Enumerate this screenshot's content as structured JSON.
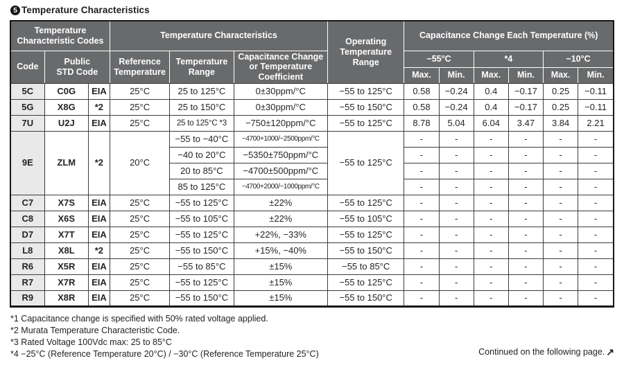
{
  "page": {
    "section_number": "5",
    "title": "Temperature Characteristics"
  },
  "table": {
    "header_rows": [
      {
        "cells": [
          {
            "t": "Temperature Characteristic Codes",
            "cs": 3
          },
          {
            "t": "Temperature Characteristics",
            "cs": 3
          },
          {
            "t": "Operating Temperature Range",
            "rs": 3,
            "cls": "bb",
            "n": "header-operating-temperature-range"
          },
          {
            "t": "Capacitance Change Each Temperature (%)",
            "cs": 6
          }
        ]
      },
      {
        "cells": [
          {
            "t": "Code",
            "rs": 2,
            "cls": "bb",
            "n": "header-code"
          },
          {
            "t": "Public\nSTD Code",
            "cs": 2,
            "rs": 2,
            "cls": "bb",
            "n": "header-public-std-code"
          },
          {
            "t": "Reference\nTemperature",
            "rs": 2,
            "cls": "bb",
            "n": "header-reference-temperature"
          },
          {
            "t": "Temperature\nRange",
            "rs": 2,
            "cls": "bb",
            "n": "header-temperature-range"
          },
          {
            "t": "Capacitance Change\nor Temperature\nCoefficient",
            "rs": 2,
            "cls": "bb",
            "n": "header-capacitance-change"
          },
          {
            "t": "−55°C",
            "cs": 2,
            "n": "header-minus-55c"
          },
          {
            "t": "*4",
            "cs": 2,
            "n": "header-star4"
          },
          {
            "t": "−10°C",
            "cs": 2,
            "n": "header-minus-10c"
          }
        ]
      },
      {
        "cells": [
          {
            "t": "Max.",
            "cls": "bb"
          },
          {
            "t": "Min.",
            "cls": "bb"
          },
          {
            "t": "Max.",
            "cls": "bb"
          },
          {
            "t": "Min.",
            "cls": "bb"
          },
          {
            "t": "Max.",
            "cls": "bb"
          },
          {
            "t": "Min.",
            "cls": "bb"
          }
        ]
      }
    ],
    "body_rows": [
      {
        "cells": [
          {
            "t": "5C",
            "cls": "code",
            "n": "code-cell"
          },
          {
            "t": "C0G",
            "cls": "b"
          },
          {
            "t": "EIA",
            "cls": "b"
          },
          {
            "t": "25°C"
          },
          {
            "t": "25 to 125°C"
          },
          {
            "t": "0±30ppm/°C"
          },
          {
            "t": "−55 to 125°C"
          },
          {
            "t": "0.58"
          },
          {
            "t": "−0.24"
          },
          {
            "t": "0.4"
          },
          {
            "t": "−0.17"
          },
          {
            "t": "0.25"
          },
          {
            "t": "−0.11"
          }
        ]
      },
      {
        "cells": [
          {
            "t": "5G",
            "cls": "code",
            "n": "code-cell"
          },
          {
            "t": "X8G",
            "cls": "b"
          },
          {
            "t": "*2",
            "cls": "b"
          },
          {
            "t": "25°C"
          },
          {
            "t": "25 to 150°C"
          },
          {
            "t": "0±30ppm/°C"
          },
          {
            "t": "−55 to 150°C"
          },
          {
            "t": "0.58"
          },
          {
            "t": "−0.24"
          },
          {
            "t": "0.4"
          },
          {
            "t": "−0.17"
          },
          {
            "t": "0.25"
          },
          {
            "t": "−0.11"
          }
        ]
      },
      {
        "cells": [
          {
            "t": "7U",
            "cls": "code",
            "n": "code-cell"
          },
          {
            "t": "U2J",
            "cls": "b"
          },
          {
            "t": "EIA",
            "cls": "b"
          },
          {
            "t": "25°C"
          },
          {
            "t": "25 to 125°C *3",
            "cls": "tight"
          },
          {
            "t": "−750±120ppm/°C"
          },
          {
            "t": "−55 to 125°C"
          },
          {
            "t": "8.78"
          },
          {
            "t": "5.04"
          },
          {
            "t": "6.04"
          },
          {
            "t": "3.47"
          },
          {
            "t": "3.84"
          },
          {
            "t": "2.21"
          }
        ]
      },
      {
        "cells": [
          {
            "t": "9E",
            "cls": "code",
            "rs": 4,
            "n": "code-cell"
          },
          {
            "t": "ZLM",
            "cls": "b",
            "rs": 4
          },
          {
            "t": "*2",
            "cls": "b",
            "rs": 4
          },
          {
            "t": "20°C",
            "rs": 4
          },
          {
            "t": "−55 to −40°C"
          },
          {
            "t": "−4700+1000/−2500ppm/°C",
            "cls": "small"
          },
          {
            "t": "−55 to 125°C",
            "rs": 4
          },
          {
            "t": "-"
          },
          {
            "t": "-"
          },
          {
            "t": "-"
          },
          {
            "t": "-"
          },
          {
            "t": "-"
          },
          {
            "t": "-"
          }
        ]
      },
      {
        "cells": [
          {
            "t": "−40 to 20°C"
          },
          {
            "t": "−5350±750ppm/°C"
          },
          {
            "t": "-"
          },
          {
            "t": "-"
          },
          {
            "t": "-"
          },
          {
            "t": "-"
          },
          {
            "t": "-"
          },
          {
            "t": "-"
          }
        ]
      },
      {
        "cells": [
          {
            "t": "20 to 85°C"
          },
          {
            "t": "−4700±500ppm/°C"
          },
          {
            "t": "-"
          },
          {
            "t": "-"
          },
          {
            "t": "-"
          },
          {
            "t": "-"
          },
          {
            "t": "-"
          },
          {
            "t": "-"
          }
        ]
      },
      {
        "cells": [
          {
            "t": "85 to 125°C"
          },
          {
            "t": "−4700+2000/−1000ppm/°C",
            "cls": "small"
          },
          {
            "t": "-"
          },
          {
            "t": "-"
          },
          {
            "t": "-"
          },
          {
            "t": "-"
          },
          {
            "t": "-"
          },
          {
            "t": "-"
          }
        ]
      },
      {
        "cells": [
          {
            "t": "C7",
            "cls": "code",
            "n": "code-cell"
          },
          {
            "t": "X7S",
            "cls": "b"
          },
          {
            "t": "EIA",
            "cls": "b"
          },
          {
            "t": "25°C"
          },
          {
            "t": "−55 to 125°C"
          },
          {
            "t": "±22%"
          },
          {
            "t": "−55 to 125°C"
          },
          {
            "t": "-"
          },
          {
            "t": "-"
          },
          {
            "t": "-"
          },
          {
            "t": "-"
          },
          {
            "t": "-"
          },
          {
            "t": "-"
          }
        ]
      },
      {
        "cells": [
          {
            "t": "C8",
            "cls": "code",
            "n": "code-cell"
          },
          {
            "t": "X6S",
            "cls": "b"
          },
          {
            "t": "EIA",
            "cls": "b"
          },
          {
            "t": "25°C"
          },
          {
            "t": "−55 to 105°C"
          },
          {
            "t": "±22%"
          },
          {
            "t": "−55 to 105°C"
          },
          {
            "t": "-"
          },
          {
            "t": "-"
          },
          {
            "t": "-"
          },
          {
            "t": "-"
          },
          {
            "t": "-"
          },
          {
            "t": "-"
          }
        ]
      },
      {
        "cells": [
          {
            "t": "D7",
            "cls": "code",
            "n": "code-cell"
          },
          {
            "t": "X7T",
            "cls": "b"
          },
          {
            "t": "EIA",
            "cls": "b"
          },
          {
            "t": "25°C"
          },
          {
            "t": "−55 to 125°C"
          },
          {
            "t": "+22%, −33%"
          },
          {
            "t": "−55 to 125°C"
          },
          {
            "t": "-"
          },
          {
            "t": "-"
          },
          {
            "t": "-"
          },
          {
            "t": "-"
          },
          {
            "t": "-"
          },
          {
            "t": "-"
          }
        ]
      },
      {
        "cells": [
          {
            "t": "L8",
            "cls": "code",
            "n": "code-cell"
          },
          {
            "t": "X8L",
            "cls": "b"
          },
          {
            "t": "*2",
            "cls": "b"
          },
          {
            "t": "25°C"
          },
          {
            "t": "−55 to 150°C"
          },
          {
            "t": "+15%, −40%"
          },
          {
            "t": "−55 to 150°C"
          },
          {
            "t": "-"
          },
          {
            "t": "-"
          },
          {
            "t": "-"
          },
          {
            "t": "-"
          },
          {
            "t": "-"
          },
          {
            "t": "-"
          }
        ]
      },
      {
        "cells": [
          {
            "t": "R6",
            "cls": "code",
            "n": "code-cell"
          },
          {
            "t": "X5R",
            "cls": "b"
          },
          {
            "t": "EIA",
            "cls": "b"
          },
          {
            "t": "25°C"
          },
          {
            "t": "−55 to 85°C"
          },
          {
            "t": "±15%"
          },
          {
            "t": "−55 to 85°C"
          },
          {
            "t": "-"
          },
          {
            "t": "-"
          },
          {
            "t": "-"
          },
          {
            "t": "-"
          },
          {
            "t": "-"
          },
          {
            "t": "-"
          }
        ]
      },
      {
        "cells": [
          {
            "t": "R7",
            "cls": "code",
            "n": "code-cell"
          },
          {
            "t": "X7R",
            "cls": "b"
          },
          {
            "t": "EIA",
            "cls": "b"
          },
          {
            "t": "25°C"
          },
          {
            "t": "−55 to 125°C"
          },
          {
            "t": "±15%"
          },
          {
            "t": "−55 to 125°C"
          },
          {
            "t": "-"
          },
          {
            "t": "-"
          },
          {
            "t": "-"
          },
          {
            "t": "-"
          },
          {
            "t": "-"
          },
          {
            "t": "-"
          }
        ]
      },
      {
        "cells": [
          {
            "t": "R9",
            "cls": "code",
            "n": "code-cell"
          },
          {
            "t": "X8R",
            "cls": "b"
          },
          {
            "t": "EIA",
            "cls": "b"
          },
          {
            "t": "25°C"
          },
          {
            "t": "−55 to 150°C"
          },
          {
            "t": "±15%"
          },
          {
            "t": "−55 to 150°C"
          },
          {
            "t": "-"
          },
          {
            "t": "-"
          },
          {
            "t": "-"
          },
          {
            "t": "-"
          },
          {
            "t": "-"
          },
          {
            "t": "-"
          }
        ]
      }
    ]
  },
  "footnotes": [
    "*1 Capacitance change is specified with 50% rated voltage applied.",
    "*2 Murata Temperature Characteristic Code.",
    "*3 Rated Voltage 100Vdc max: 25 to 85°C",
    "*4 −25°C (Reference Temperature 20°C) / −30°C (Reference Temperature 25°C)"
  ],
  "continued": {
    "text": "Continued on the following page.",
    "arrow": "↗"
  },
  "colors": {
    "header_bg": "#696a6c",
    "code_column_bg": "#e9e9e9",
    "grid_border": "#3b3b3b",
    "outer_border": "#161616"
  }
}
